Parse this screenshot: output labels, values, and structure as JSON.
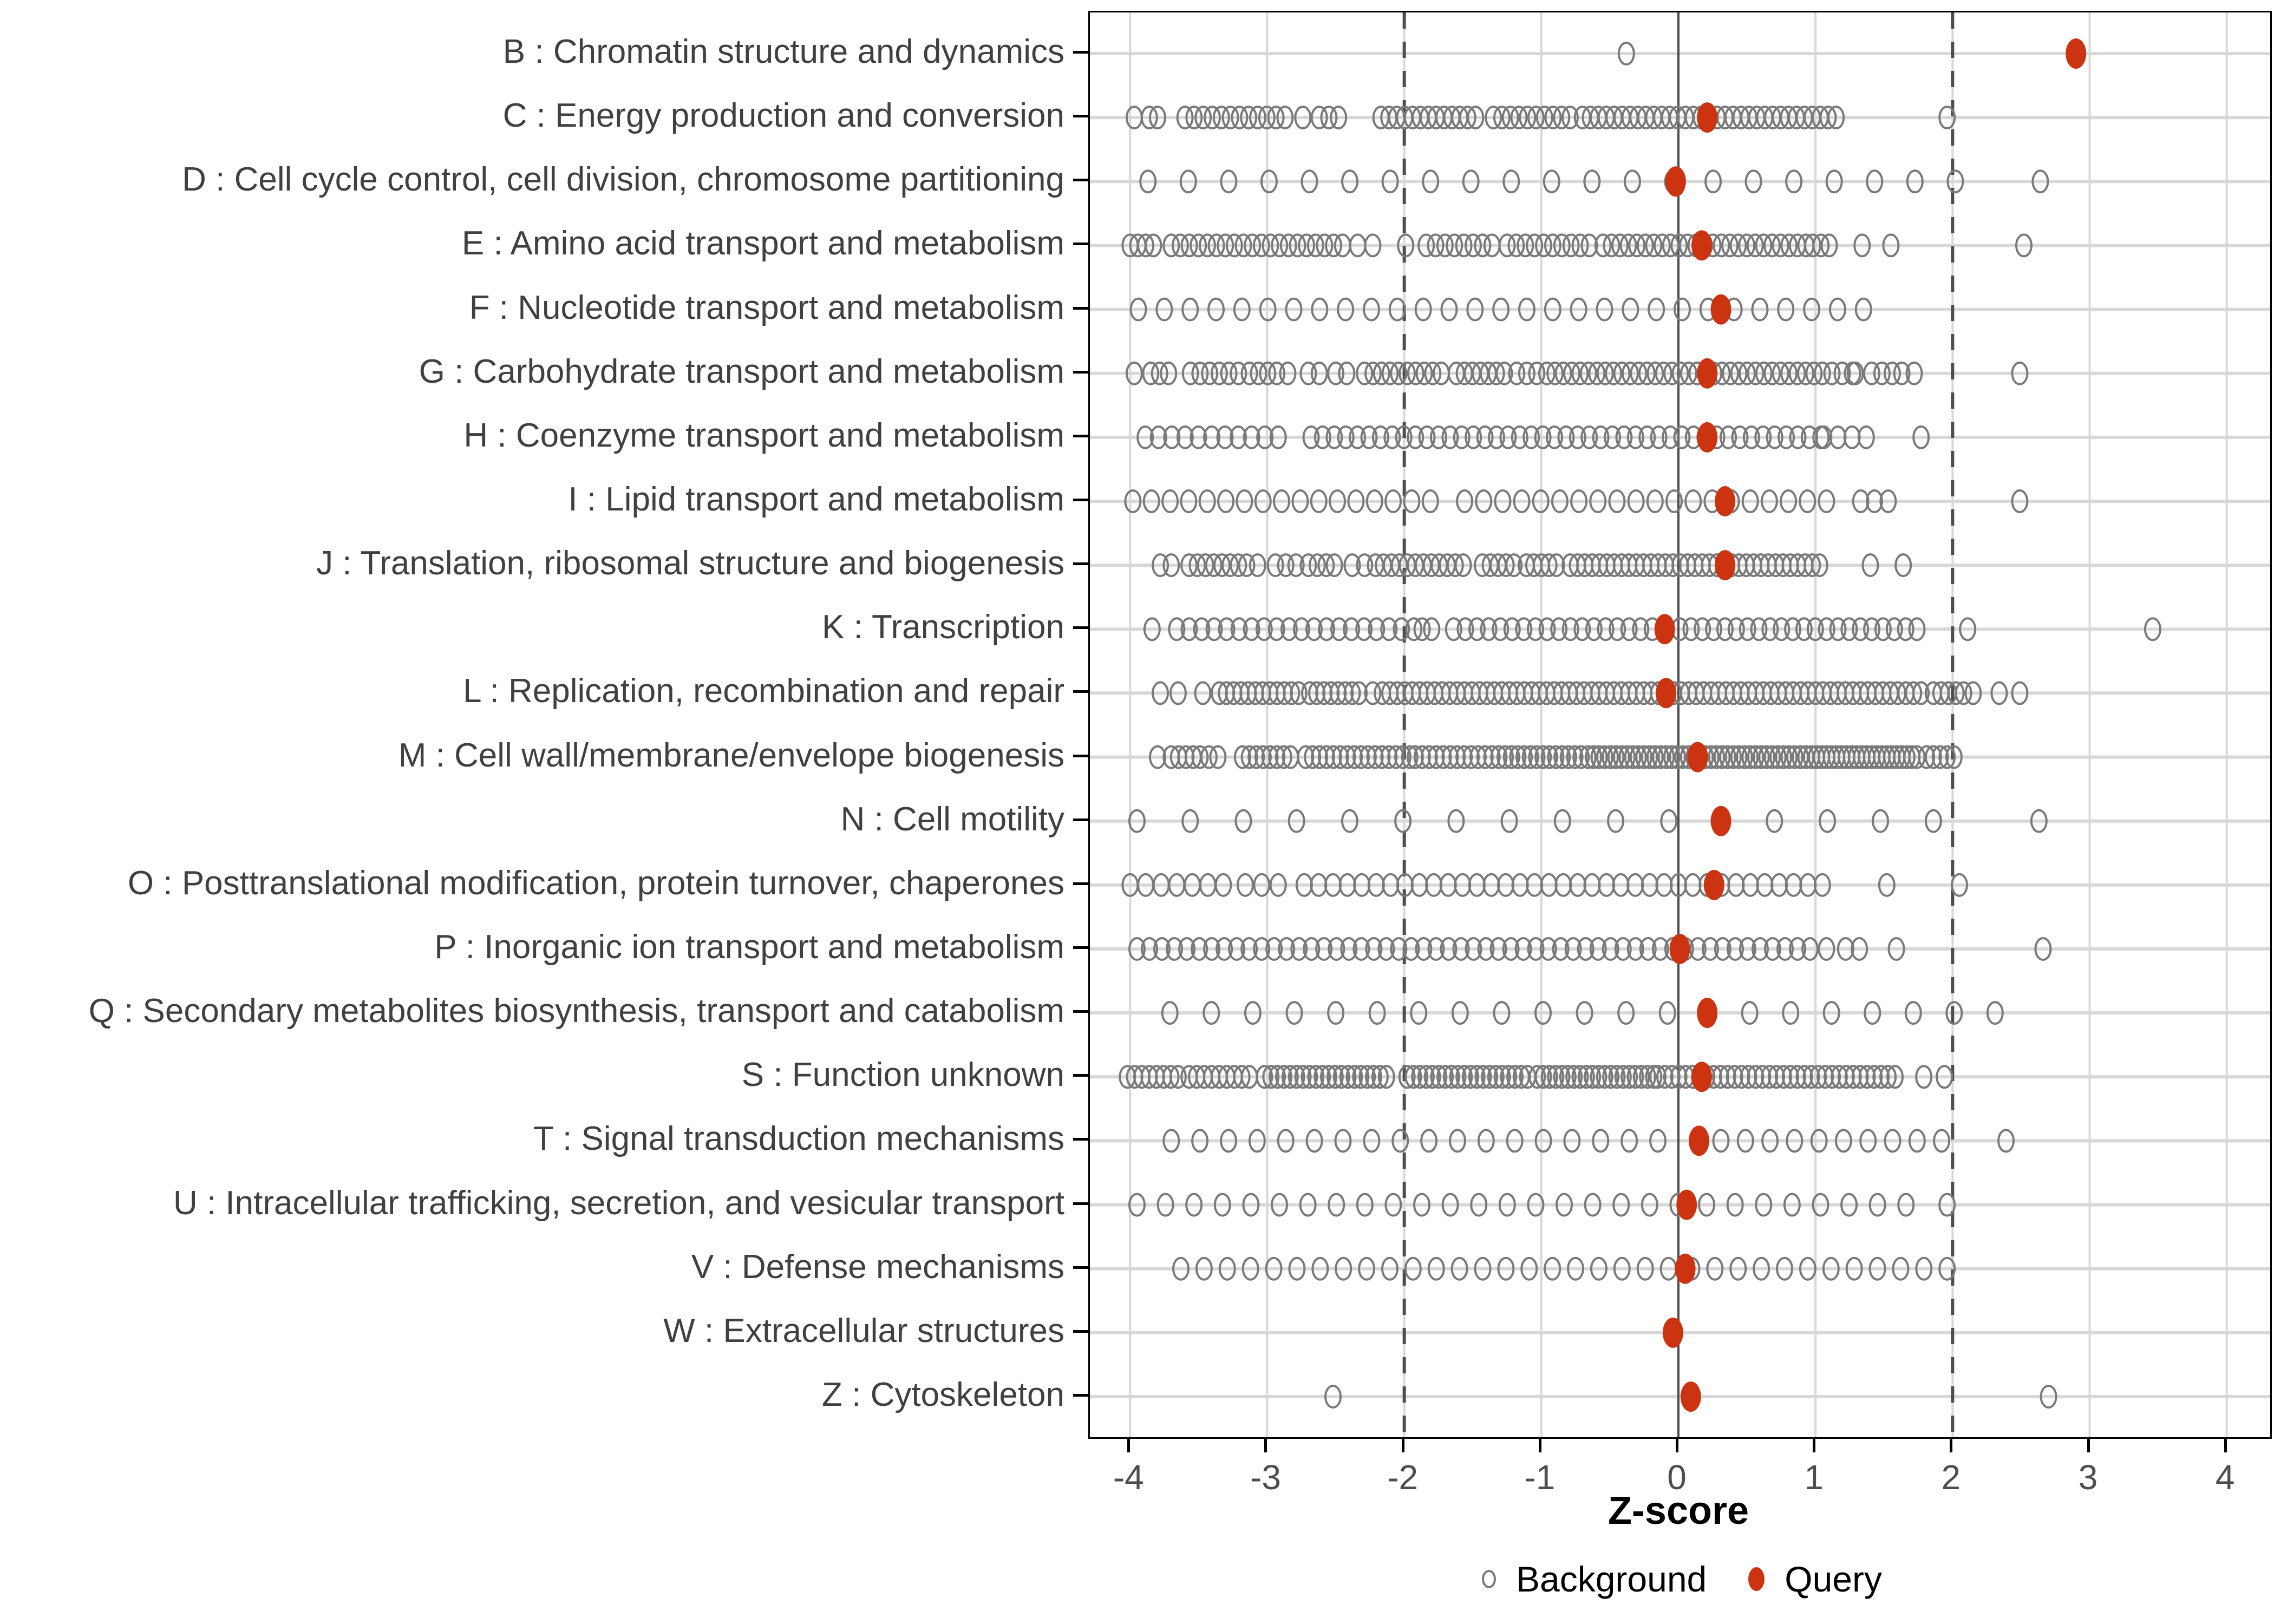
{
  "chart_data": {
    "type": "scatter",
    "subtype": "categorical-strip-plot",
    "title": "",
    "xlabel": "Z-score",
    "ylabel": "",
    "xlim": [
      -4.35,
      4.35
    ],
    "xticks": [
      -4,
      -3,
      -2,
      -1,
      0,
      1,
      2,
      3,
      4
    ],
    "grid": "major-only",
    "legend_position": "bottom",
    "reference_lines": {
      "solid": [
        0
      ],
      "dashed": [
        -2,
        2
      ]
    },
    "colors": {
      "query": "#CC3311",
      "background_stroke": "#7A7A7A",
      "grid": "#D8D8D8",
      "reference": "#4D4D4D",
      "axis_text": "#4D4D4D",
      "panel_border": "#000000"
    },
    "legend": {
      "background_label": "Background",
      "query_label": "Query"
    },
    "categories": [
      {
        "label": "B : Chromatin structure and dynamics",
        "query": 2.9,
        "runs": [],
        "singles": [
          -0.38
        ]
      },
      {
        "label": "C : Energy production and conversion",
        "query": 0.21,
        "runs": [
          [
            -3.86,
            -3.8,
            2
          ],
          [
            -3.6,
            -2.87,
            12
          ],
          [
            -2.62,
            -2.48,
            3
          ],
          [
            -2.17,
            -1.48,
            13
          ],
          [
            -1.35,
            -0.79,
            10
          ],
          [
            -0.7,
            1.15,
            33
          ]
        ],
        "singles": [
          -3.97,
          -2.74,
          1.96
        ]
      },
      {
        "label": "D : Cell cycle control, cell division, chromosome partitioning",
        "query": -0.02,
        "runs": [
          [
            -3.87,
            2.02,
            21
          ]
        ],
        "singles": [
          2.64
        ]
      },
      {
        "label": "E : Amino acid transport and metabolism",
        "query": 0.17,
        "runs": [
          [
            -4.0,
            -3.83,
            4
          ],
          [
            -3.7,
            -2.45,
            20
          ],
          [
            -2.34,
            -2.23,
            2
          ],
          [
            -1.84,
            -1.36,
            8
          ],
          [
            -1.25,
            -0.65,
            10
          ],
          [
            -0.55,
            0.93,
            25
          ],
          [
            0.98,
            1.1,
            3
          ]
        ],
        "singles": [
          -1.99,
          1.34,
          1.55,
          2.52
        ]
      },
      {
        "label": "F : Nucleotide transport and metabolism",
        "query": 0.31,
        "runs": [
          [
            -3.94,
            1.35,
            29
          ]
        ],
        "singles": []
      },
      {
        "label": "G : Carbohydrate transport and metabolism",
        "query": 0.21,
        "runs": [
          [
            -3.85,
            -3.72,
            3
          ],
          [
            -3.56,
            -3.21,
            6
          ],
          [
            -3.13,
            -2.93,
            4
          ],
          [
            -2.7,
            -2.62,
            2
          ],
          [
            -2.5,
            -2.42,
            2
          ],
          [
            -2.29,
            -1.73,
            10
          ],
          [
            -1.62,
            -1.27,
            7
          ],
          [
            -1.18,
            -0.96,
            4
          ],
          [
            -0.9,
            1.05,
            33
          ],
          [
            1.12,
            1.27,
            3
          ],
          [
            1.41,
            1.56,
            3
          ],
          [
            1.63,
            1.72,
            2
          ]
        ],
        "singles": [
          -3.97,
          -2.85,
          1.29,
          2.49
        ]
      },
      {
        "label": "H : Coenzyme transport and metabolism",
        "query": 0.21,
        "runs": [
          [
            -3.89,
            -2.92,
            11
          ],
          [
            -2.68,
            1.04,
            45
          ],
          [
            1.06,
            1.37,
            4
          ]
        ],
        "singles": [
          1.77
        ]
      },
      {
        "label": "I : Lipid transport and metabolism",
        "query": 0.34,
        "runs": [
          [
            -3.98,
            -1.81,
            17
          ],
          [
            -1.56,
            1.08,
            20
          ],
          [
            1.33,
            1.53,
            3
          ]
        ],
        "singles": [
          2.49
        ]
      },
      {
        "label": "J : Translation, ribosomal structure and biogenesis",
        "query": 0.34,
        "runs": [
          [
            -3.78,
            -3.7,
            2
          ],
          [
            -3.57,
            -3.15,
            8
          ],
          [
            -2.94,
            -2.79,
            3
          ],
          [
            -2.7,
            -2.57,
            3
          ],
          [
            -2.38,
            -2.29,
            2
          ],
          [
            -2.21,
            -1.57,
            12
          ],
          [
            -1.43,
            -1.2,
            5
          ],
          [
            -1.11,
            -0.89,
            5
          ],
          [
            -0.79,
            1.03,
            35
          ]
        ],
        "singles": [
          -3.07,
          -2.51,
          1.4,
          1.64
        ]
      },
      {
        "label": "K : Transcription",
        "query": -0.1,
        "runs": [
          [
            -3.66,
            -1.93,
            20
          ],
          [
            -1.87,
            -1.8,
            2
          ],
          [
            -1.64,
            -0.19,
            18
          ],
          [
            0.01,
            1.74,
            22
          ]
        ],
        "singles": [
          -3.84,
          2.11,
          3.46
        ]
      },
      {
        "label": "L : Replication, recombination and repair",
        "query": -0.09,
        "runs": [
          [
            -3.78,
            -3.65,
            2
          ],
          [
            -3.35,
            -2.77,
            12
          ],
          [
            -2.69,
            -2.38,
            7
          ],
          [
            -2.33,
            -2.23,
            2
          ],
          [
            -2.16,
            1.6,
            70
          ],
          [
            1.66,
            1.77,
            3
          ],
          [
            1.86,
            2.08,
            5
          ],
          [
            2.15,
            2.34,
            2
          ]
        ],
        "singles": [
          -3.47,
          2.49
        ]
      },
      {
        "label": "M : Cell wall/membrane/envelope biogenesis",
        "query": 0.14,
        "runs": [
          [
            -3.7,
            -3.54,
            4
          ],
          [
            -3.49,
            -3.36,
            3
          ],
          [
            -3.18,
            -2.88,
            7
          ],
          [
            -2.72,
            -1.96,
            16
          ],
          [
            -1.92,
            -1.36,
            12
          ],
          [
            -1.31,
            -0.71,
            14
          ],
          [
            -0.66,
            0.93,
            40
          ],
          [
            0.97,
            1.74,
            22
          ],
          [
            1.81,
            2.01,
            5
          ]
        ],
        "singles": [
          -3.8,
          -2.83
        ]
      },
      {
        "label": "N : Cell motility",
        "query": 0.31,
        "runs": [
          [
            -3.95,
            -0.07,
            11
          ],
          [
            0.7,
            1.86,
            4
          ]
        ],
        "singles": [
          2.63
        ]
      },
      {
        "label": "O : Posttranslational modification, protein turnover, chaperones",
        "query": 0.26,
        "runs": [
          [
            -4.0,
            -3.32,
            7
          ],
          [
            -3.16,
            -2.92,
            3
          ],
          [
            -2.73,
            1.05,
            37
          ]
        ],
        "singles": [
          1.52,
          2.05
        ]
      },
      {
        "label": "P : Inorganic ion transport and metabolism",
        "query": 0.01,
        "runs": [
          [
            -3.95,
            0.96,
            55
          ],
          [
            1.22,
            1.32,
            2
          ]
        ],
        "singles": [
          1.08,
          1.59,
          2.66
        ]
      },
      {
        "label": "Q : Secondary metabolites biosynthesis, transport and catabolism",
        "query": 0.21,
        "runs": [
          [
            -3.71,
            -0.08,
            13
          ],
          [
            0.52,
            2.31,
            7
          ]
        ],
        "singles": []
      },
      {
        "label": "S : Function unknown",
        "query": 0.17,
        "runs": [
          [
            -4.02,
            -3.65,
            8
          ],
          [
            -3.57,
            -3.13,
            9
          ],
          [
            -3.02,
            -2.13,
            20
          ],
          [
            -1.98,
            -1.1,
            20
          ],
          [
            -1.03,
            -0.18,
            20
          ],
          [
            -0.15,
            1.58,
            35
          ]
        ],
        "singles": [
          1.79,
          1.94
        ]
      },
      {
        "label": "T : Signal transduction mechanisms",
        "query": 0.15,
        "runs": [
          [
            -3.7,
            -0.15,
            18
          ],
          [
            0.31,
            1.92,
            10
          ]
        ],
        "singles": [
          2.39
        ]
      },
      {
        "label": "U : Intracellular trafficking, secretion, and vesicular transport",
        "query": 0.06,
        "runs": [
          [
            -3.95,
            1.66,
            28
          ]
        ],
        "singles": [
          1.96
        ]
      },
      {
        "label": "V : Defense mechanisms",
        "query": 0.05,
        "runs": [
          [
            -3.63,
            1.96,
            34
          ]
        ],
        "singles": []
      },
      {
        "label": "W : Extracellular structures",
        "query": -0.04,
        "runs": [],
        "singles": []
      },
      {
        "label": "Z : Cytoskeleton",
        "query": 0.09,
        "runs": [],
        "singles": [
          -2.52,
          2.7
        ]
      }
    ]
  }
}
